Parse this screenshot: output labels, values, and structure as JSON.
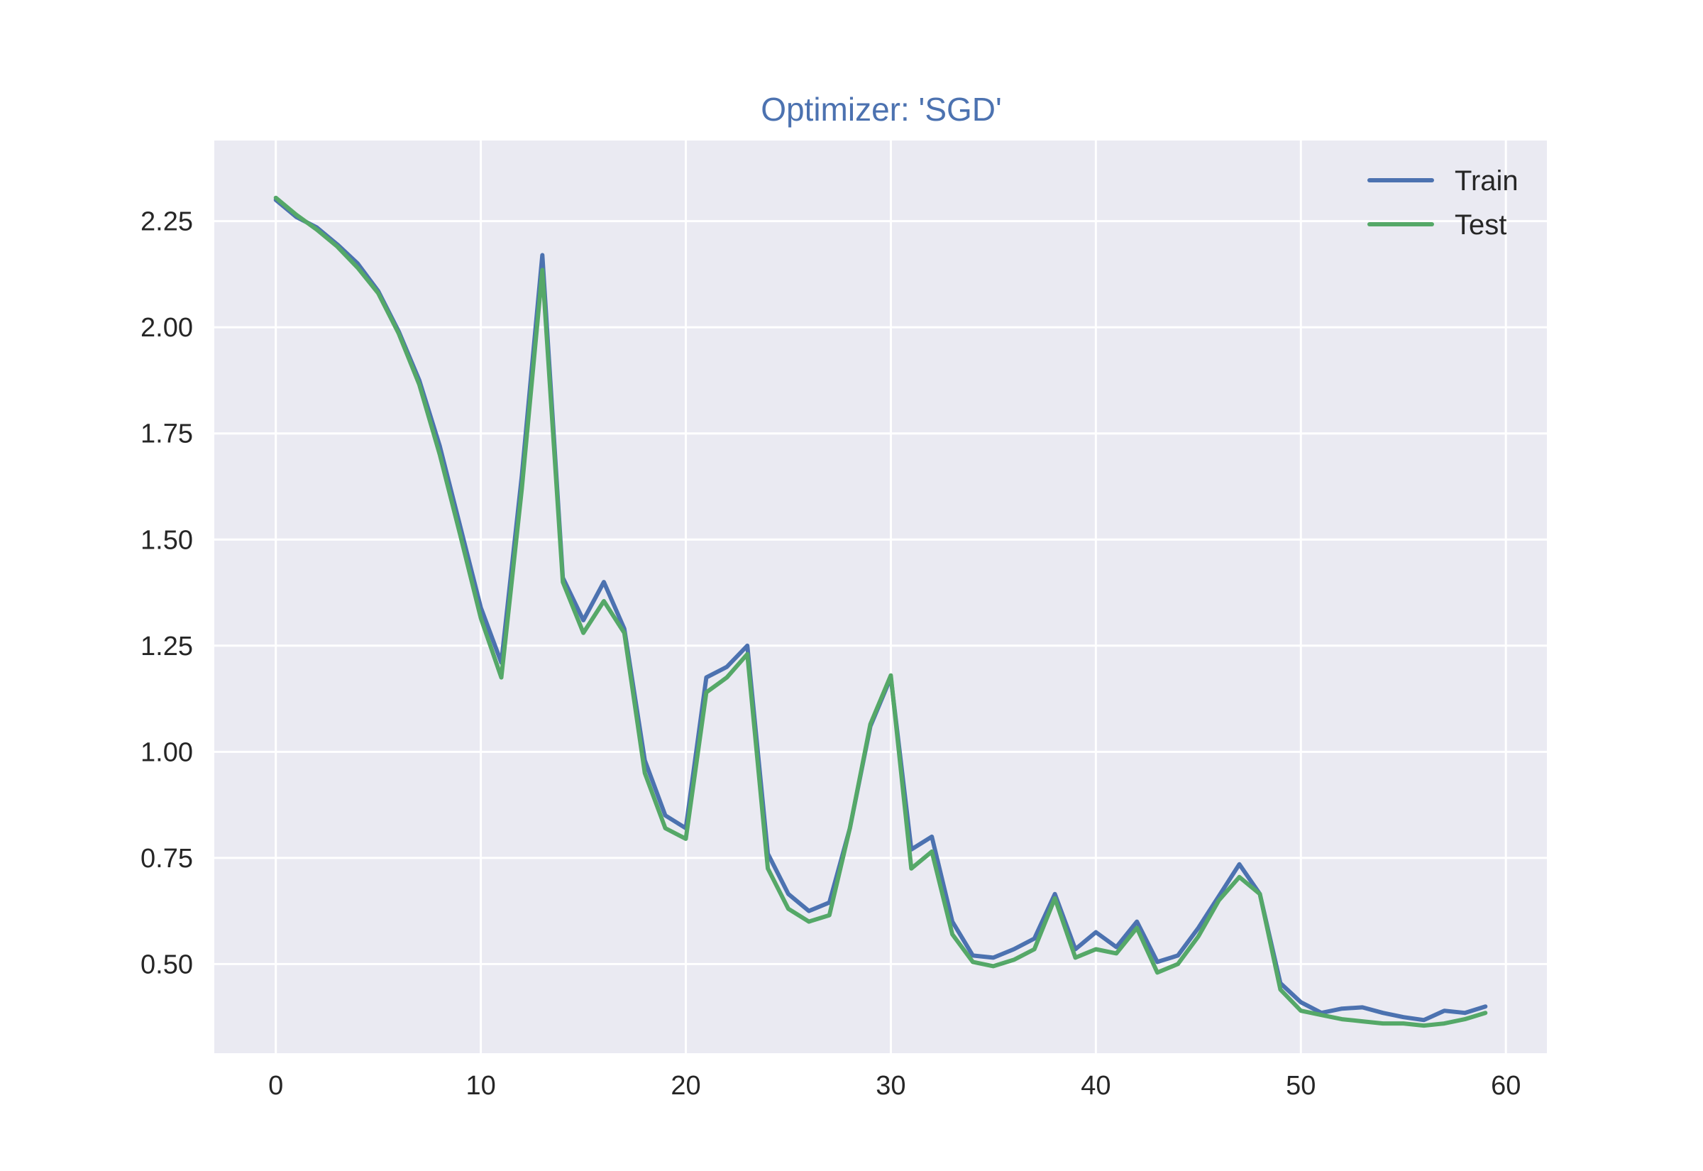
{
  "chart_data": {
    "type": "line",
    "title": "Optimizer: 'SGD'",
    "xlabel": "",
    "ylabel": "",
    "xlim": [
      -3,
      62
    ],
    "ylim": [
      0.29,
      2.44
    ],
    "xticks": [
      0,
      10,
      20,
      30,
      40,
      50,
      60
    ],
    "yticks": [
      0.5,
      0.75,
      1.0,
      1.25,
      1.5,
      1.75,
      2.0,
      2.25
    ],
    "xtick_labels": [
      "0",
      "10",
      "20",
      "30",
      "40",
      "50",
      "60"
    ],
    "ytick_labels": [
      "0.50",
      "0.75",
      "1.00",
      "1.25",
      "1.50",
      "1.75",
      "2.00",
      "2.25"
    ],
    "grid": true,
    "legend_position": "top-right",
    "colors": {
      "background": "#eaeaf2",
      "grid": "#ffffff",
      "title": "#4c72b0"
    },
    "series": [
      {
        "name": "Train",
        "color": "#4c72b0",
        "x": [
          0,
          1,
          2,
          3,
          4,
          5,
          6,
          7,
          8,
          9,
          10,
          11,
          12,
          13,
          14,
          15,
          16,
          17,
          18,
          19,
          20,
          21,
          22,
          23,
          24,
          25,
          26,
          27,
          28,
          29,
          30,
          31,
          32,
          33,
          34,
          35,
          36,
          37,
          38,
          39,
          40,
          41,
          42,
          43,
          44,
          45,
          46,
          47,
          48,
          49,
          50,
          51,
          52,
          53,
          54,
          55,
          56,
          57,
          58,
          59
        ],
        "y": [
          2.3,
          2.26,
          2.235,
          2.195,
          2.15,
          2.085,
          1.99,
          1.875,
          1.72,
          1.53,
          1.34,
          1.21,
          1.65,
          2.17,
          1.41,
          1.31,
          1.4,
          1.29,
          0.98,
          0.85,
          0.82,
          1.175,
          1.2,
          1.25,
          0.76,
          0.665,
          0.625,
          0.645,
          0.82,
          1.06,
          1.175,
          0.77,
          0.8,
          0.6,
          0.52,
          0.515,
          0.535,
          0.56,
          0.665,
          0.535,
          0.575,
          0.54,
          0.6,
          0.505,
          0.52,
          0.585,
          0.66,
          0.735,
          0.665,
          0.455,
          0.41,
          0.385,
          0.395,
          0.398,
          0.385,
          0.375,
          0.368,
          0.39,
          0.385,
          0.4
        ]
      },
      {
        "name": "Test",
        "color": "#55a868",
        "x": [
          0,
          1,
          2,
          3,
          4,
          5,
          6,
          7,
          8,
          9,
          10,
          11,
          12,
          13,
          14,
          15,
          16,
          17,
          18,
          19,
          20,
          21,
          22,
          23,
          24,
          25,
          26,
          27,
          28,
          29,
          30,
          31,
          32,
          33,
          34,
          35,
          36,
          37,
          38,
          39,
          40,
          41,
          42,
          43,
          44,
          45,
          46,
          47,
          48,
          49,
          50,
          51,
          52,
          53,
          54,
          55,
          56,
          57,
          58,
          59
        ],
        "y": [
          2.305,
          2.265,
          2.23,
          2.19,
          2.14,
          2.08,
          1.985,
          1.865,
          1.7,
          1.51,
          1.315,
          1.175,
          1.62,
          2.135,
          1.4,
          1.28,
          1.355,
          1.28,
          0.95,
          0.82,
          0.795,
          1.14,
          1.175,
          1.23,
          0.725,
          0.63,
          0.6,
          0.615,
          0.82,
          1.065,
          1.18,
          0.725,
          0.765,
          0.57,
          0.505,
          0.495,
          0.51,
          0.535,
          0.655,
          0.515,
          0.535,
          0.525,
          0.585,
          0.48,
          0.5,
          0.565,
          0.65,
          0.705,
          0.665,
          0.44,
          0.39,
          0.38,
          0.37,
          0.365,
          0.36,
          0.36,
          0.355,
          0.36,
          0.37,
          0.385
        ]
      }
    ]
  }
}
